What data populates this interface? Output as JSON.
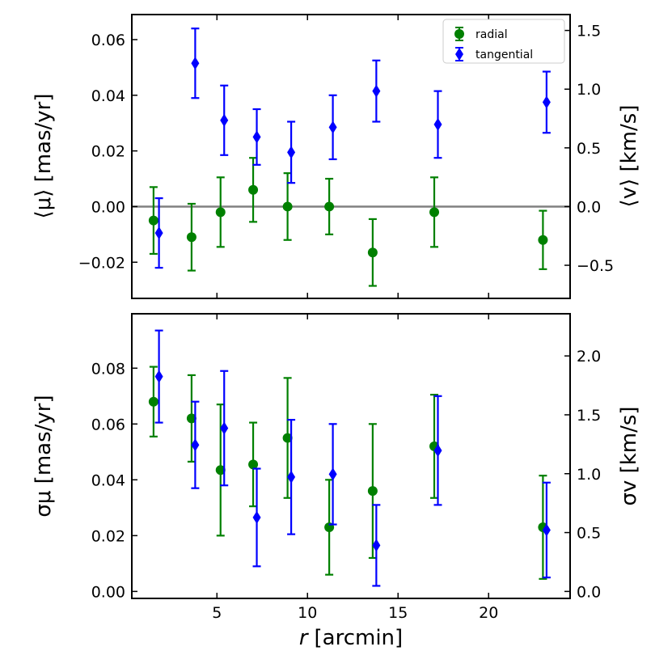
{
  "colors": {
    "radial": "#008000",
    "tangential": "#0000ff",
    "zero_line": "#808080"
  },
  "chart_data": [
    {
      "type": "scatter",
      "panel": "top",
      "xlabel_r": "r",
      "xlabel_unit": "[arcmin]",
      "xlim": [
        0.3,
        24.5
      ],
      "x_ticks": [
        5,
        10,
        15,
        20
      ],
      "ylabel_left": "⟨μ⟩ [mas/yr]",
      "ylabel_right": "⟨v⟩ [km/s]",
      "ylim": [
        -0.033,
        0.069
      ],
      "y_ticks": [
        -0.02,
        0.0,
        0.02,
        0.04,
        0.06
      ],
      "y_tick_labels": [
        "−0.02",
        "0.00",
        "0.02",
        "0.04",
        "0.06"
      ],
      "right_ticks": [
        -0.5,
        0.0,
        0.5,
        1.0,
        1.5
      ],
      "right_tick_labels": [
        "−0.5",
        "0.0",
        "0.5",
        "1.0",
        "1.5"
      ],
      "right_scale_per_left_unit": 23.7,
      "zero_line": true,
      "legend": {
        "position": "top-right",
        "entries": [
          "radial",
          "tangential"
        ]
      },
      "series": [
        {
          "name": "radial",
          "marker": "circle",
          "x": [
            1.5,
            3.6,
            5.2,
            7.0,
            8.9,
            11.2,
            13.6,
            17.0,
            23.0
          ],
          "y": [
            -0.005,
            -0.011,
            -0.002,
            0.006,
            0.0,
            0.0,
            -0.0165,
            -0.002,
            -0.012
          ],
          "err": [
            0.012,
            0.012,
            0.0125,
            0.0115,
            0.012,
            0.01,
            0.012,
            0.0125,
            0.0105
          ]
        },
        {
          "name": "tangential",
          "marker": "diamond",
          "x": [
            1.8,
            3.8,
            5.4,
            7.2,
            9.1,
            11.4,
            13.8,
            17.2,
            23.2
          ],
          "y": [
            -0.0095,
            0.0515,
            0.031,
            0.025,
            0.0195,
            0.0285,
            0.0415,
            0.0295,
            0.0375
          ],
          "err": [
            0.0125,
            0.0125,
            0.0125,
            0.01,
            0.011,
            0.0115,
            0.011,
            0.012,
            0.011
          ]
        }
      ]
    },
    {
      "type": "scatter",
      "panel": "bottom",
      "xlabel_r": "r",
      "xlabel_unit": "[arcmin]",
      "xlim": [
        0.3,
        24.5
      ],
      "x_ticks": [
        5,
        10,
        15,
        20
      ],
      "x_tick_labels": [
        "5",
        "10",
        "15",
        "20"
      ],
      "ylabel_left": "σμ [mas/yr]",
      "ylabel_right": "σv [km/s]",
      "ylim": [
        -0.0025,
        0.0995
      ],
      "y_ticks": [
        0.0,
        0.02,
        0.04,
        0.06,
        0.08
      ],
      "y_tick_labels": [
        "0.00",
        "0.02",
        "0.04",
        "0.06",
        "0.08"
      ],
      "right_ticks": [
        0.0,
        0.5,
        1.0,
        1.5,
        2.0
      ],
      "right_tick_labels": [
        "0.0",
        "0.5",
        "1.0",
        "1.5",
        "2.0"
      ],
      "right_scale_per_left_unit": 23.7,
      "series": [
        {
          "name": "radial",
          "marker": "circle",
          "x": [
            1.5,
            3.6,
            5.2,
            7.0,
            8.9,
            11.2,
            13.6,
            17.0,
            23.0
          ],
          "y": [
            0.068,
            0.062,
            0.0435,
            0.0455,
            0.055,
            0.023,
            0.036,
            0.052,
            0.023
          ],
          "err": [
            0.0125,
            0.0155,
            0.0235,
            0.015,
            0.0215,
            0.017,
            0.024,
            0.0185,
            0.0185
          ]
        },
        {
          "name": "tangential",
          "marker": "diamond",
          "x": [
            1.8,
            3.8,
            5.4,
            7.2,
            9.1,
            11.4,
            13.8,
            17.2,
            23.2
          ],
          "y": [
            0.077,
            0.0525,
            0.0585,
            0.0265,
            0.041,
            0.042,
            0.0165,
            0.0505,
            0.022
          ],
          "err": [
            0.0165,
            0.0155,
            0.0205,
            0.0175,
            0.0205,
            0.018,
            0.0145,
            0.0195,
            0.017
          ]
        }
      ]
    }
  ]
}
